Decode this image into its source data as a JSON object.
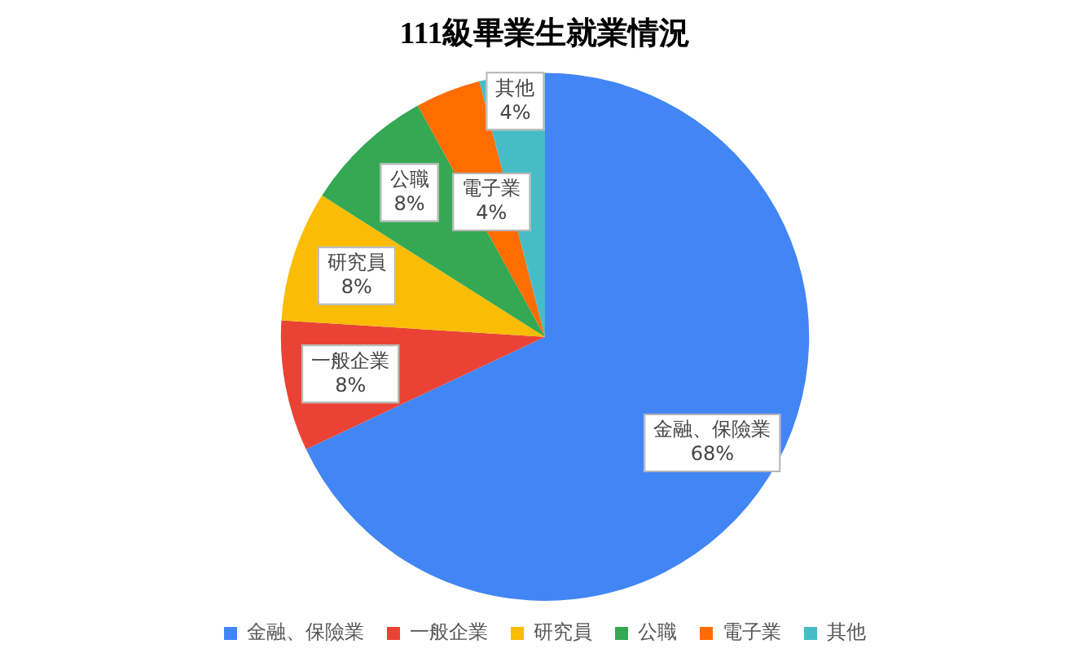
{
  "chart_data": {
    "type": "pie",
    "title": "111級畢業生就業情況",
    "categories": [
      "金融、保險業",
      "一般企業",
      "研究員",
      "公職",
      "電子業",
      "其他"
    ],
    "values": [
      68,
      8,
      8,
      8,
      4,
      4
    ],
    "colors": [
      "#4285f4",
      "#ea4335",
      "#fbbc04",
      "#34a853",
      "#ff6d01",
      "#46bdc6"
    ],
    "value_labels": [
      "68%",
      "8%",
      "8%",
      "8%",
      "4%",
      "4%"
    ],
    "legend": "bottom"
  }
}
